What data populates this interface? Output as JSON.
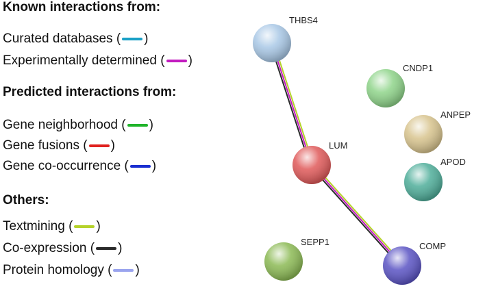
{
  "legend": {
    "known_heading": "Known interactions from:",
    "known": [
      {
        "label": "Curated databases",
        "color": "#1aa0c6"
      },
      {
        "label": "Experimentally determined",
        "color": "#c21cbf"
      }
    ],
    "predicted_heading": "Predicted interactions from:",
    "predicted": [
      {
        "label": "Gene neighborhood",
        "color": "#1fb42a"
      },
      {
        "label": "Gene fusions",
        "color": "#e0221f"
      },
      {
        "label": "Gene co-occurrence",
        "color": "#1a2fd0"
      }
    ],
    "others_heading": "Others:",
    "others": [
      {
        "label": "Textmining",
        "color": "#b5d22a"
      },
      {
        "label": "Co-expression",
        "color": "#2a2a2a"
      },
      {
        "label": "Protein homology",
        "color": "#9aa4ee"
      }
    ]
  },
  "network": {
    "nodes": [
      {
        "id": "THBS4",
        "label": "THBS4",
        "color": "#a9c8e6"
      },
      {
        "id": "CNDP1",
        "label": "CNDP1",
        "color": "#8fd48a"
      },
      {
        "id": "ANPEP",
        "label": "ANPEP",
        "color": "#d8c48e"
      },
      {
        "id": "APOD",
        "label": "APOD",
        "color": "#4fae9a"
      },
      {
        "id": "LUM",
        "label": "LUM",
        "color": "#e05a5a"
      },
      {
        "id": "SEPP1",
        "label": "SEPP1",
        "color": "#8cba55"
      },
      {
        "id": "COMP",
        "label": "COMP",
        "color": "#5b54c4"
      }
    ],
    "edges": [
      {
        "source": "THBS4",
        "target": "LUM",
        "evidence": [
          "Textmining",
          "Experimentally determined",
          "Co-expression"
        ]
      },
      {
        "source": "LUM",
        "target": "COMP",
        "evidence": [
          "Textmining",
          "Experimentally determined",
          "Co-expression"
        ]
      }
    ]
  }
}
